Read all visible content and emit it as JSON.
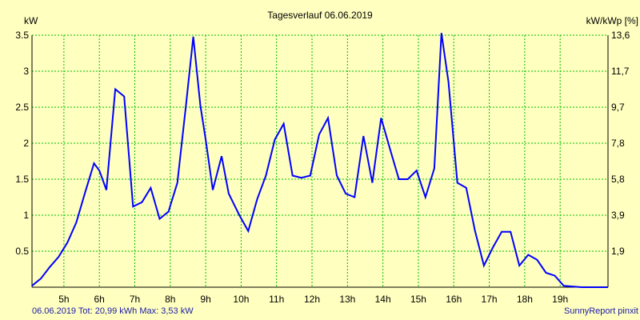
{
  "chart_data": {
    "type": "line",
    "title": "Tagesverlauf 06.06.2019",
    "ylabel": "kW",
    "y2label": "kW/kWp [%]",
    "categories": [
      "5h",
      "6h",
      "7h",
      "8h",
      "9h",
      "10h",
      "11h",
      "12h",
      "13h",
      "14h",
      "15h",
      "16h",
      "17h",
      "18h",
      "19h"
    ],
    "yticks": [
      "0.5",
      "1",
      "1.5",
      "2",
      "2.5",
      "3",
      "3.5"
    ],
    "y2ticks": [
      "1,9",
      "3,9",
      "5,8",
      "7,8",
      "9,7",
      "11,7",
      "13,6"
    ],
    "ylim": [
      0,
      3.5
    ],
    "xlim": [
      4.1,
      20.35
    ],
    "grid": true,
    "legend": "none",
    "series": [
      {
        "color": "#0000ff",
        "x": [
          4.1,
          4.35,
          4.6,
          4.85,
          5.1,
          5.35,
          5.6,
          5.85,
          6.0,
          6.2,
          6.45,
          6.7,
          6.95,
          7.2,
          7.45,
          7.7,
          7.95,
          8.2,
          8.45,
          8.65,
          8.85,
          9.0,
          9.2,
          9.45,
          9.65,
          9.95,
          10.2,
          10.45,
          10.7,
          10.95,
          11.2,
          11.45,
          11.7,
          11.95,
          12.2,
          12.45,
          12.7,
          12.95,
          13.2,
          13.45,
          13.7,
          13.95,
          14.2,
          14.45,
          14.7,
          14.95,
          15.2,
          15.45,
          15.65,
          15.85,
          16.1,
          16.35,
          16.6,
          16.85,
          17.1,
          17.35,
          17.6,
          17.85,
          18.1,
          18.35,
          18.6,
          18.85,
          19.1,
          19.35,
          19.6,
          19.85,
          20.1,
          20.35
        ],
        "y": [
          0.02,
          0.12,
          0.28,
          0.42,
          0.62,
          0.9,
          1.32,
          1.72,
          1.62,
          1.35,
          2.75,
          2.65,
          1.12,
          1.18,
          1.38,
          0.95,
          1.05,
          1.45,
          2.55,
          3.48,
          2.52,
          2.05,
          1.35,
          1.82,
          1.3,
          1.0,
          0.78,
          1.22,
          1.55,
          2.05,
          2.27,
          1.55,
          1.52,
          1.55,
          2.12,
          2.35,
          1.55,
          1.3,
          1.25,
          2.1,
          1.45,
          2.35,
          1.92,
          1.5,
          1.5,
          1.62,
          1.25,
          1.65,
          3.53,
          2.85,
          1.45,
          1.38,
          0.78,
          0.3,
          0.55,
          0.77,
          0.77,
          0.3,
          0.45,
          0.38,
          0.2,
          0.16,
          0.02,
          0.01,
          0.0,
          0.0,
          0.0,
          0.0
        ]
      }
    ]
  },
  "footer": {
    "left": "06.06.2019 Tot: 20,99 kWh Max: 3,53 kW",
    "right": "SunnyReport pinxit"
  }
}
